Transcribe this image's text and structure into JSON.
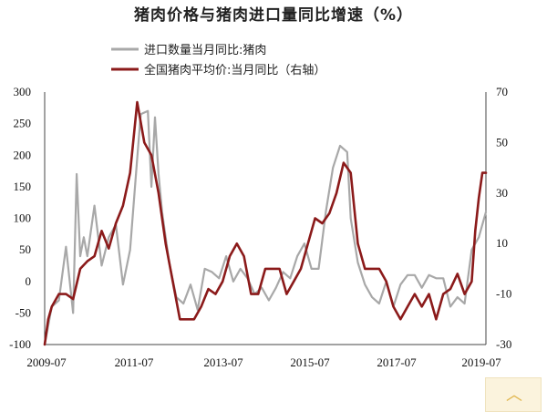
{
  "chart_data": {
    "type": "line",
    "title": "猪肉价格与猪肉进口量同比增速（%）",
    "x_ticks": [
      "2009-07",
      "2011-07",
      "2013-07",
      "2015-07",
      "2017-07",
      "2019-07"
    ],
    "x_range": [
      "2009-07",
      "2019-09"
    ],
    "y_left": {
      "ticks": [
        300,
        250,
        200,
        150,
        100,
        50,
        0,
        -50,
        -100
      ],
      "range": [
        -100,
        300
      ]
    },
    "y_right": {
      "ticks": [
        70,
        50,
        30,
        10,
        -10,
        -30
      ],
      "range": [
        -30,
        70
      ]
    },
    "legend_position": "top-center",
    "grid": false,
    "series": [
      {
        "name": "进口数量当月同比:猪肉",
        "axis": "left",
        "color": "#a8a8a8",
        "x": [
          "2009-05",
          "2009-07",
          "2009-09",
          "2009-11",
          "2010-01",
          "2010-02",
          "2010-03",
          "2010-04",
          "2010-05",
          "2010-07",
          "2010-09",
          "2010-11",
          "2011-01",
          "2011-03",
          "2011-05",
          "2011-07",
          "2011-08",
          "2011-10",
          "2011-11",
          "2011-12",
          "2012-01",
          "2012-02",
          "2012-04",
          "2012-06",
          "2012-08",
          "2012-10",
          "2012-12",
          "2013-02",
          "2013-04",
          "2013-06",
          "2013-08",
          "2013-10",
          "2013-12",
          "2014-02",
          "2014-04",
          "2014-06",
          "2014-08",
          "2014-10",
          "2014-12",
          "2015-02",
          "2015-04",
          "2015-06",
          "2015-08",
          "2015-10",
          "2015-12",
          "2016-02",
          "2016-04",
          "2016-06",
          "2016-07",
          "2016-09",
          "2016-11",
          "2017-01",
          "2017-03",
          "2017-05",
          "2017-07",
          "2017-09",
          "2017-11",
          "2018-01",
          "2018-03",
          "2018-05",
          "2018-07",
          "2018-09",
          "2018-11",
          "2019-01",
          "2019-03",
          "2019-05",
          "2019-07",
          "2019-09"
        ],
        "values": [
          -100,
          -40,
          -30,
          55,
          -50,
          170,
          40,
          70,
          40,
          120,
          25,
          70,
          90,
          -5,
          50,
          195,
          265,
          270,
          150,
          260,
          170,
          110,
          30,
          -25,
          -35,
          -5,
          -45,
          20,
          15,
          5,
          40,
          0,
          20,
          5,
          -20,
          -10,
          -30,
          -10,
          15,
          5,
          40,
          60,
          20,
          20,
          110,
          180,
          215,
          205,
          100,
          30,
          -5,
          -25,
          -35,
          0,
          -40,
          -5,
          10,
          10,
          -10,
          10,
          5,
          5,
          -40,
          -25,
          -35,
          50,
          70,
          110
        ]
      },
      {
        "name": "全国猪肉平均价:当月同比（右轴）",
        "axis": "right",
        "color": "#8b1a1a",
        "x": [
          "2009-05",
          "2009-06",
          "2009-07",
          "2009-09",
          "2009-11",
          "2010-01",
          "2010-03",
          "2010-05",
          "2010-07",
          "2010-09",
          "2010-11",
          "2011-01",
          "2011-03",
          "2011-05",
          "2011-07",
          "2011-09",
          "2011-11",
          "2012-01",
          "2012-03",
          "2012-05",
          "2012-07",
          "2012-09",
          "2012-11",
          "2013-01",
          "2013-03",
          "2013-05",
          "2013-07",
          "2013-09",
          "2013-11",
          "2014-01",
          "2014-03",
          "2014-05",
          "2014-07",
          "2014-09",
          "2014-11",
          "2015-01",
          "2015-03",
          "2015-05",
          "2015-07",
          "2015-09",
          "2015-11",
          "2016-01",
          "2016-03",
          "2016-05",
          "2016-07",
          "2016-09",
          "2016-11",
          "2017-01",
          "2017-03",
          "2017-05",
          "2017-07",
          "2017-09",
          "2017-11",
          "2018-01",
          "2018-03",
          "2018-05",
          "2018-07",
          "2018-09",
          "2018-11",
          "2019-01",
          "2019-03",
          "2019-05",
          "2019-06",
          "2019-07",
          "2019-08",
          "2019-09"
        ],
        "values": [
          -30,
          -20,
          -15,
          -10,
          -10,
          -12,
          0,
          3,
          5,
          15,
          8,
          18,
          25,
          38,
          66,
          50,
          45,
          30,
          10,
          -5,
          -20,
          -20,
          -20,
          -15,
          -8,
          -10,
          -5,
          5,
          10,
          5,
          -10,
          -10,
          0,
          0,
          0,
          -10,
          -5,
          0,
          10,
          20,
          18,
          22,
          30,
          42,
          38,
          10,
          0,
          0,
          0,
          -5,
          -15,
          -20,
          -15,
          -10,
          -15,
          -10,
          -20,
          -10,
          -8,
          -2,
          -10,
          -5,
          15,
          28,
          38,
          38
        ]
      }
    ]
  }
}
